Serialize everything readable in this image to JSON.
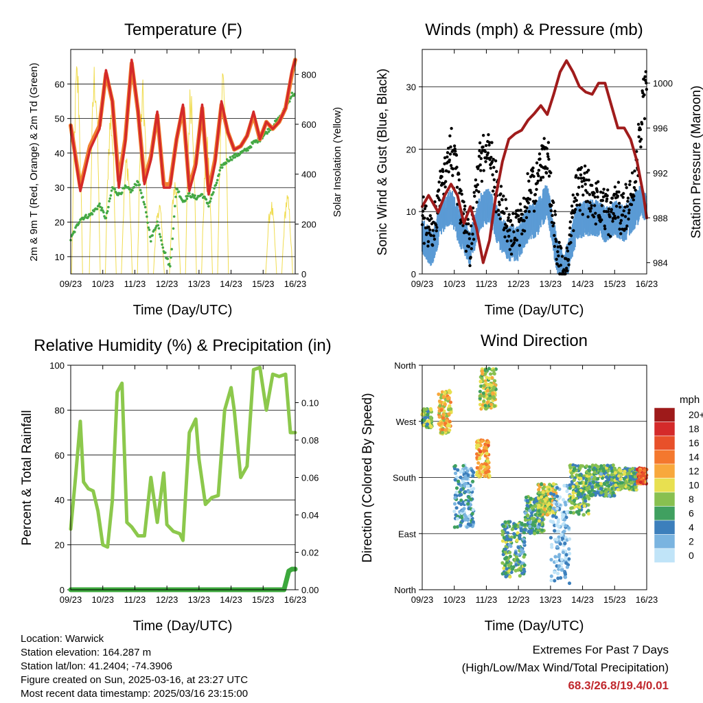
{
  "panels": {
    "temperature": {
      "title": "Temperature (F)",
      "ylabel_left": "2m & 9m T (Red, Orange) & 2m Td (Green)",
      "ylabel_right": "Solar Insolation (Yellow)",
      "xlabel": "Time (Day/UTC)"
    },
    "wind": {
      "title": "Winds (mph) & Pressure (mb)",
      "ylabel_left": "Sonic Wind & Gust (Blue, Black)",
      "ylabel_right": "Station Pressure (Maroon)",
      "xlabel": "Time (Day/UTC)"
    },
    "humidity": {
      "title": "Relative Humidity (%) & Precipitation (in)",
      "ylabel_left": "Percent & Total Rainfall",
      "xlabel": "Time (Day/UTC)"
    },
    "direction": {
      "title": "Wind Direction",
      "ylabel_left": "Direction (Colored By Speed)",
      "xlabel": "Time (Day/UTC)"
    }
  },
  "x_ticks": [
    "09/23",
    "10/23",
    "11/23",
    "12/23",
    "13/23",
    "14/23",
    "15/23",
    "16/23"
  ],
  "colors": {
    "temp_2m": "#d42a2a",
    "temp_9m": "#f08030",
    "dewpoint": "#44a844",
    "solar": "#f0dc50",
    "wind": "#5b9bd5",
    "gust": "#000000",
    "pressure": "#a01c1c",
    "rh": "#8cc84c",
    "precip": "#3ca83c"
  },
  "legend": {
    "title": "mph",
    "labels": [
      "20+",
      "18",
      "16",
      "14",
      "12",
      "10",
      "8",
      "6",
      "4",
      "2",
      "0"
    ],
    "colors": [
      "#9e1a1a",
      "#d42a2a",
      "#e8502a",
      "#f4782e",
      "#f8a83c",
      "#e8e050",
      "#88c050",
      "#40a060",
      "#3c7fbc",
      "#7ab4e0",
      "#c0e4f8"
    ]
  },
  "info": {
    "location": "Location: Warwick",
    "elevation": "Station elevation: 164.287 m",
    "latlon": "Station lat/lon: 41.2404; -74.3906",
    "created": "Figure created on Sun, 2025-03-16, at 23:27 UTC",
    "recent": "Most recent data timestamp: 2025/03/16 23:15:00"
  },
  "extremes": {
    "title": "Extremes For Past 7 Days",
    "subtitle": "(High/Low/Max Wind/Total Precipitation)",
    "values": "68.3/26.8/19.4/0.01"
  },
  "chart_data": [
    {
      "type": "line",
      "title": "Temperature (F)",
      "xlabel": "Time (Day/UTC)",
      "ylabel": "2m & 9m T (Red, Orange) & 2m Td (Green)",
      "ylabel_right": "Solar Insolation (Yellow)",
      "x_unit": "day of March 2025",
      "xlim": [
        9,
        16
      ],
      "ylim": [
        5,
        70
      ],
      "ylim_right": [
        0,
        900
      ],
      "y_ticks": [
        10,
        20,
        30,
        40,
        50,
        60
      ],
      "y_ticks_right": [
        0,
        200,
        400,
        600,
        800
      ],
      "series": [
        {
          "name": "2m T",
          "color": "#d42a2a",
          "x": [
            9.0,
            9.3,
            9.6,
            9.9,
            10.1,
            10.3,
            10.5,
            10.7,
            10.9,
            11.1,
            11.3,
            11.5,
            11.7,
            11.9,
            12.1,
            12.3,
            12.5,
            12.7,
            12.9,
            13.1,
            13.3,
            13.5,
            13.7,
            13.9,
            14.1,
            14.3,
            14.5,
            14.7,
            14.9,
            15.1,
            15.3,
            15.5,
            15.7,
            15.9,
            16.0
          ],
          "y": [
            48,
            29,
            41,
            47,
            64,
            55,
            30,
            43,
            67,
            52,
            31,
            38,
            52,
            30,
            30,
            44,
            54,
            29,
            36,
            54,
            28,
            37,
            55,
            46,
            41,
            42,
            45,
            52,
            44,
            49,
            47,
            49,
            53,
            64,
            67
          ]
        },
        {
          "name": "9m T",
          "color": "#f08030",
          "x": [
            9.0,
            9.3,
            9.6,
            9.9,
            10.1,
            10.3,
            10.5,
            10.7,
            10.9,
            11.1,
            11.3,
            11.5,
            11.7,
            11.9,
            12.1,
            12.3,
            12.5,
            12.7,
            12.9,
            13.1,
            13.3,
            13.5,
            13.7,
            13.9,
            14.1,
            14.3,
            14.5,
            14.7,
            14.9,
            15.1,
            15.3,
            15.5,
            15.7,
            15.9,
            16.0
          ],
          "y": [
            48,
            30,
            42,
            48,
            63,
            55,
            32,
            44,
            66,
            52,
            32,
            39,
            51,
            31,
            31,
            44,
            53,
            30,
            37,
            53,
            29,
            38,
            54,
            46,
            41,
            42,
            45,
            51,
            44,
            49,
            47,
            49,
            53,
            63,
            67
          ]
        },
        {
          "name": "2m Td",
          "color": "#44a844",
          "x": [
            9.0,
            9.3,
            9.6,
            9.9,
            10.1,
            10.3,
            10.5,
            10.7,
            10.9,
            11.1,
            11.3,
            11.5,
            11.7,
            11.9,
            12.1,
            12.3,
            12.5,
            12.7,
            12.9,
            13.1,
            13.3,
            13.5,
            13.7,
            13.9,
            14.1,
            14.3,
            14.5,
            14.7,
            14.9,
            15.1,
            15.3,
            15.5,
            15.7,
            15.9,
            16.0
          ],
          "y": [
            15,
            21,
            22,
            25,
            21,
            30,
            28,
            30,
            29,
            32,
            25,
            15,
            20,
            12,
            7,
            30,
            26,
            28,
            27,
            28,
            25,
            30,
            36,
            38,
            39,
            40,
            41,
            43,
            44,
            46,
            48,
            50,
            53,
            57,
            57
          ]
        },
        {
          "name": "Solar",
          "color": "#f0dc50",
          "axis": "right",
          "peaks_x": [
            9.2,
            9.75,
            10.25,
            10.75,
            11.25,
            11.75,
            12.25,
            12.75,
            13.25,
            13.75,
            15.25,
            15.75
          ],
          "peaks_y": [
            880,
            880,
            690,
            500,
            780,
            300,
            400,
            800,
            560,
            880,
            300,
            330
          ]
        }
      ]
    },
    {
      "type": "line",
      "title": "Winds (mph) & Pressure (mb)",
      "xlabel": "Time (Day/UTC)",
      "ylabel": "Sonic Wind & Gust (Blue, Black)",
      "ylabel_right": "Station Pressure (Maroon)",
      "x_unit": "day of March 2025",
      "xlim": [
        9,
        16
      ],
      "ylim": [
        0,
        36
      ],
      "ylim_right": [
        983,
        1003
      ],
      "y_ticks": [
        0,
        10,
        20,
        30
      ],
      "y_ticks_right": [
        984,
        988,
        992,
        996,
        1000
      ],
      "series": [
        {
          "name": "Wind",
          "color": "#5b9bd5",
          "x": [
            9.0,
            9.3,
            9.6,
            9.9,
            10.2,
            10.5,
            10.8,
            11.1,
            11.4,
            11.7,
            12.0,
            12.3,
            12.6,
            12.9,
            13.2,
            13.4,
            13.6,
            13.8,
            14.1,
            14.4,
            14.7,
            15.0,
            15.3,
            15.6,
            15.9,
            16.0
          ],
          "y": [
            6,
            4,
            9,
            11,
            7,
            4,
            10,
            11,
            7,
            5,
            5,
            8,
            9,
            12,
            3,
            1,
            3,
            8,
            9,
            9,
            8,
            9,
            8,
            10,
            12,
            10
          ]
        },
        {
          "name": "Gust",
          "color": "#000000",
          "x": [
            9.0,
            9.3,
            9.6,
            9.9,
            10.2,
            10.5,
            10.8,
            11.1,
            11.4,
            11.7,
            12.0,
            12.3,
            12.6,
            12.9,
            13.2,
            13.4,
            13.6,
            13.8,
            14.1,
            14.4,
            14.7,
            15.0,
            15.3,
            15.6,
            15.9,
            16.0
          ],
          "y": [
            12,
            8,
            18,
            22,
            14,
            7,
            20,
            22,
            14,
            9,
            10,
            15,
            18,
            22,
            6,
            3,
            7,
            16,
            16,
            14,
            12,
            13,
            13,
            16,
            30,
            33
          ]
        },
        {
          "name": "Pressure",
          "color": "#a01c1c",
          "axis": "right",
          "x": [
            9.0,
            9.2,
            9.5,
            9.7,
            9.9,
            10.1,
            10.3,
            10.5,
            10.7,
            10.9,
            11.1,
            11.3,
            11.5,
            11.7,
            11.9,
            12.1,
            12.3,
            12.5,
            12.7,
            12.9,
            13.1,
            13.3,
            13.5,
            13.7,
            13.9,
            14.1,
            14.3,
            14.5,
            14.7,
            14.9,
            15.1,
            15.3,
            15.5,
            15.7,
            15.9,
            16.0
          ],
          "y": [
            989,
            990,
            988.5,
            990,
            991,
            990,
            987.5,
            989,
            987,
            984,
            986,
            990,
            993,
            995,
            995.5,
            995.8,
            996.7,
            997.3,
            998,
            997.2,
            999,
            1001,
            1002,
            1001,
            999.7,
            999.2,
            999,
            1000,
            1000,
            998,
            996,
            996,
            995,
            993,
            990,
            988
          ]
        }
      ]
    },
    {
      "type": "line",
      "title": "Relative Humidity (%) & Precipitation (in)",
      "xlabel": "Time (Day/UTC)",
      "ylabel": "Percent & Total Rainfall",
      "x_unit": "day of March 2025",
      "xlim": [
        9,
        16
      ],
      "ylim": [
        0,
        100
      ],
      "ylim_right": [
        0,
        0.12
      ],
      "y_ticks": [
        0,
        20,
        40,
        60,
        80,
        100
      ],
      "y_ticks_right": [
        0.0,
        0.02,
        0.04,
        0.06,
        0.08,
        0.1
      ],
      "series": [
        {
          "name": "RH",
          "color": "#8cc84c",
          "x": [
            9.0,
            9.15,
            9.3,
            9.4,
            9.55,
            9.7,
            9.85,
            10.0,
            10.15,
            10.3,
            10.45,
            10.6,
            10.75,
            10.9,
            11.1,
            11.3,
            11.5,
            11.7,
            11.9,
            12.0,
            12.2,
            12.4,
            12.5,
            12.7,
            12.9,
            13.0,
            13.2,
            13.4,
            13.6,
            13.8,
            14.0,
            14.1,
            14.3,
            14.5,
            14.7,
            14.9,
            15.1,
            15.3,
            15.5,
            15.7,
            15.85,
            16.0
          ],
          "y": [
            27,
            50,
            75,
            48,
            45,
            44,
            35,
            20,
            19,
            40,
            88,
            92,
            30,
            28,
            24,
            24,
            50,
            30,
            52,
            29,
            26,
            25,
            22,
            70,
            76,
            58,
            38,
            41,
            42,
            80,
            90,
            80,
            50,
            55,
            98,
            99,
            80,
            96,
            95,
            96,
            70,
            70
          ]
        },
        {
          "name": "Total Rainfall",
          "color": "#3ca83c",
          "axis": "right",
          "x": [
            9.0,
            15.5,
            15.65,
            15.8,
            15.9,
            16.0
          ],
          "y": [
            0.0,
            0.0,
            0.0,
            0.01,
            0.011,
            0.011
          ]
        }
      ]
    },
    {
      "type": "scatter",
      "title": "Wind Direction",
      "xlabel": "Time (Day/UTC)",
      "ylabel": "Direction (Colored By Speed)",
      "x_unit": "day of March 2025",
      "xlim": [
        9,
        16
      ],
      "y_ticks": [
        "North",
        "East",
        "South",
        "West",
        "North"
      ],
      "legend_title": "mph",
      "legend_placement": "right",
      "clusters": [
        {
          "x0": 9.0,
          "x1": 9.3,
          "dir_lo": 260,
          "dir_hi": 290,
          "speed": 7
        },
        {
          "x0": 9.5,
          "x1": 9.9,
          "dir_lo": 250,
          "dir_hi": 320,
          "speed": 11
        },
        {
          "x0": 10.0,
          "x1": 10.6,
          "dir_lo": 100,
          "dir_hi": 200,
          "speed": 3
        },
        {
          "x0": 10.7,
          "x1": 11.1,
          "dir_lo": 180,
          "dir_hi": 240,
          "speed": 12
        },
        {
          "x0": 10.8,
          "x1": 11.3,
          "dir_lo": 290,
          "dir_hi": 355,
          "speed": 9
        },
        {
          "x0": 11.5,
          "x1": 12.2,
          "dir_lo": 20,
          "dir_hi": 110,
          "speed": 6
        },
        {
          "x0": 12.2,
          "x1": 12.8,
          "dir_lo": 90,
          "dir_hi": 150,
          "speed": 6
        },
        {
          "x0": 12.6,
          "x1": 13.2,
          "dir_lo": 120,
          "dir_hi": 170,
          "speed": 9
        },
        {
          "x0": 13.0,
          "x1": 13.6,
          "dir_lo": 10,
          "dir_hi": 170,
          "speed": 1
        },
        {
          "x0": 13.6,
          "x1": 14.2,
          "dir_lo": 120,
          "dir_hi": 200,
          "speed": 7
        },
        {
          "x0": 14.2,
          "x1": 15.0,
          "dir_lo": 150,
          "dir_hi": 200,
          "speed": 6
        },
        {
          "x0": 15.0,
          "x1": 15.7,
          "dir_lo": 160,
          "dir_hi": 195,
          "speed": 7
        },
        {
          "x0": 15.7,
          "x1": 16.0,
          "dir_lo": 170,
          "dir_hi": 195,
          "speed": 15
        }
      ]
    }
  ]
}
